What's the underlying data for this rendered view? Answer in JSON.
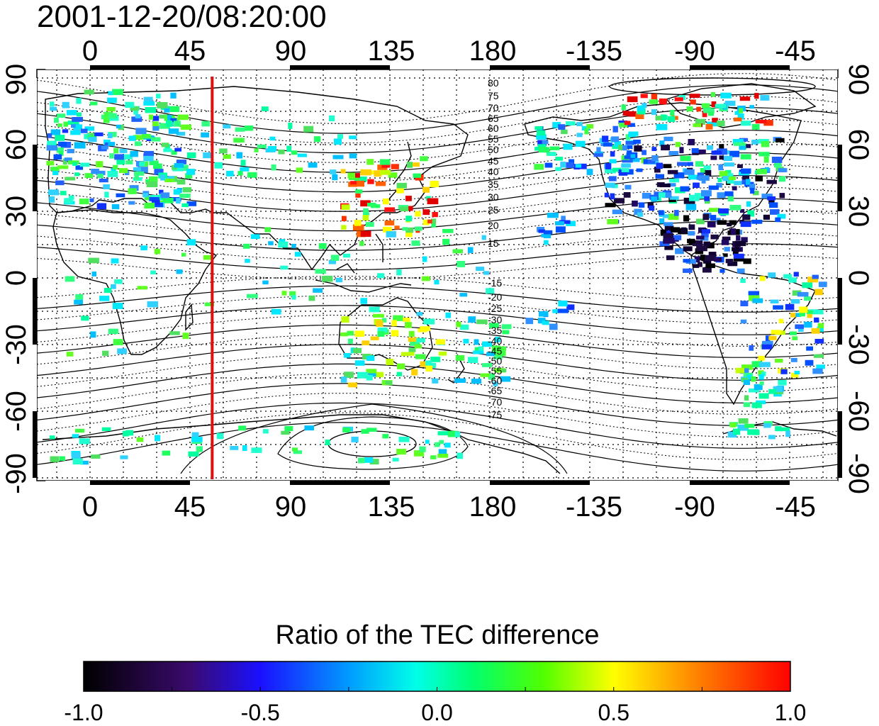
{
  "title": "2001-12-20/08:20:00",
  "axes": {
    "lon_ticks": [
      "0",
      "45",
      "90",
      "135",
      "180",
      "-135",
      "-90",
      "-45"
    ],
    "lat_ticks": [
      "90",
      "60",
      "30",
      "0",
      "-30",
      "-60",
      "-90"
    ]
  },
  "contour_labels_north": [
    "80",
    "75",
    "70",
    "65",
    "60",
    "55",
    "50",
    "45",
    "40",
    "35",
    "30",
    "25",
    "20",
    "15"
  ],
  "contour_labels_south": [
    "-15",
    "-20",
    "-25",
    "-30",
    "-35",
    "-40",
    "-45",
    "-50",
    "-55",
    "-60",
    "-65",
    "-70",
    "-75"
  ],
  "meridian_marker": {
    "longitude": 55,
    "color": "#e01010"
  },
  "colorbar": {
    "title": "Ratio of the TEC difference",
    "tick_labels": [
      "-1.0",
      "-0.5",
      "0.0",
      "0.5",
      "1.0"
    ],
    "range": [
      -1.0,
      1.0
    ]
  }
}
